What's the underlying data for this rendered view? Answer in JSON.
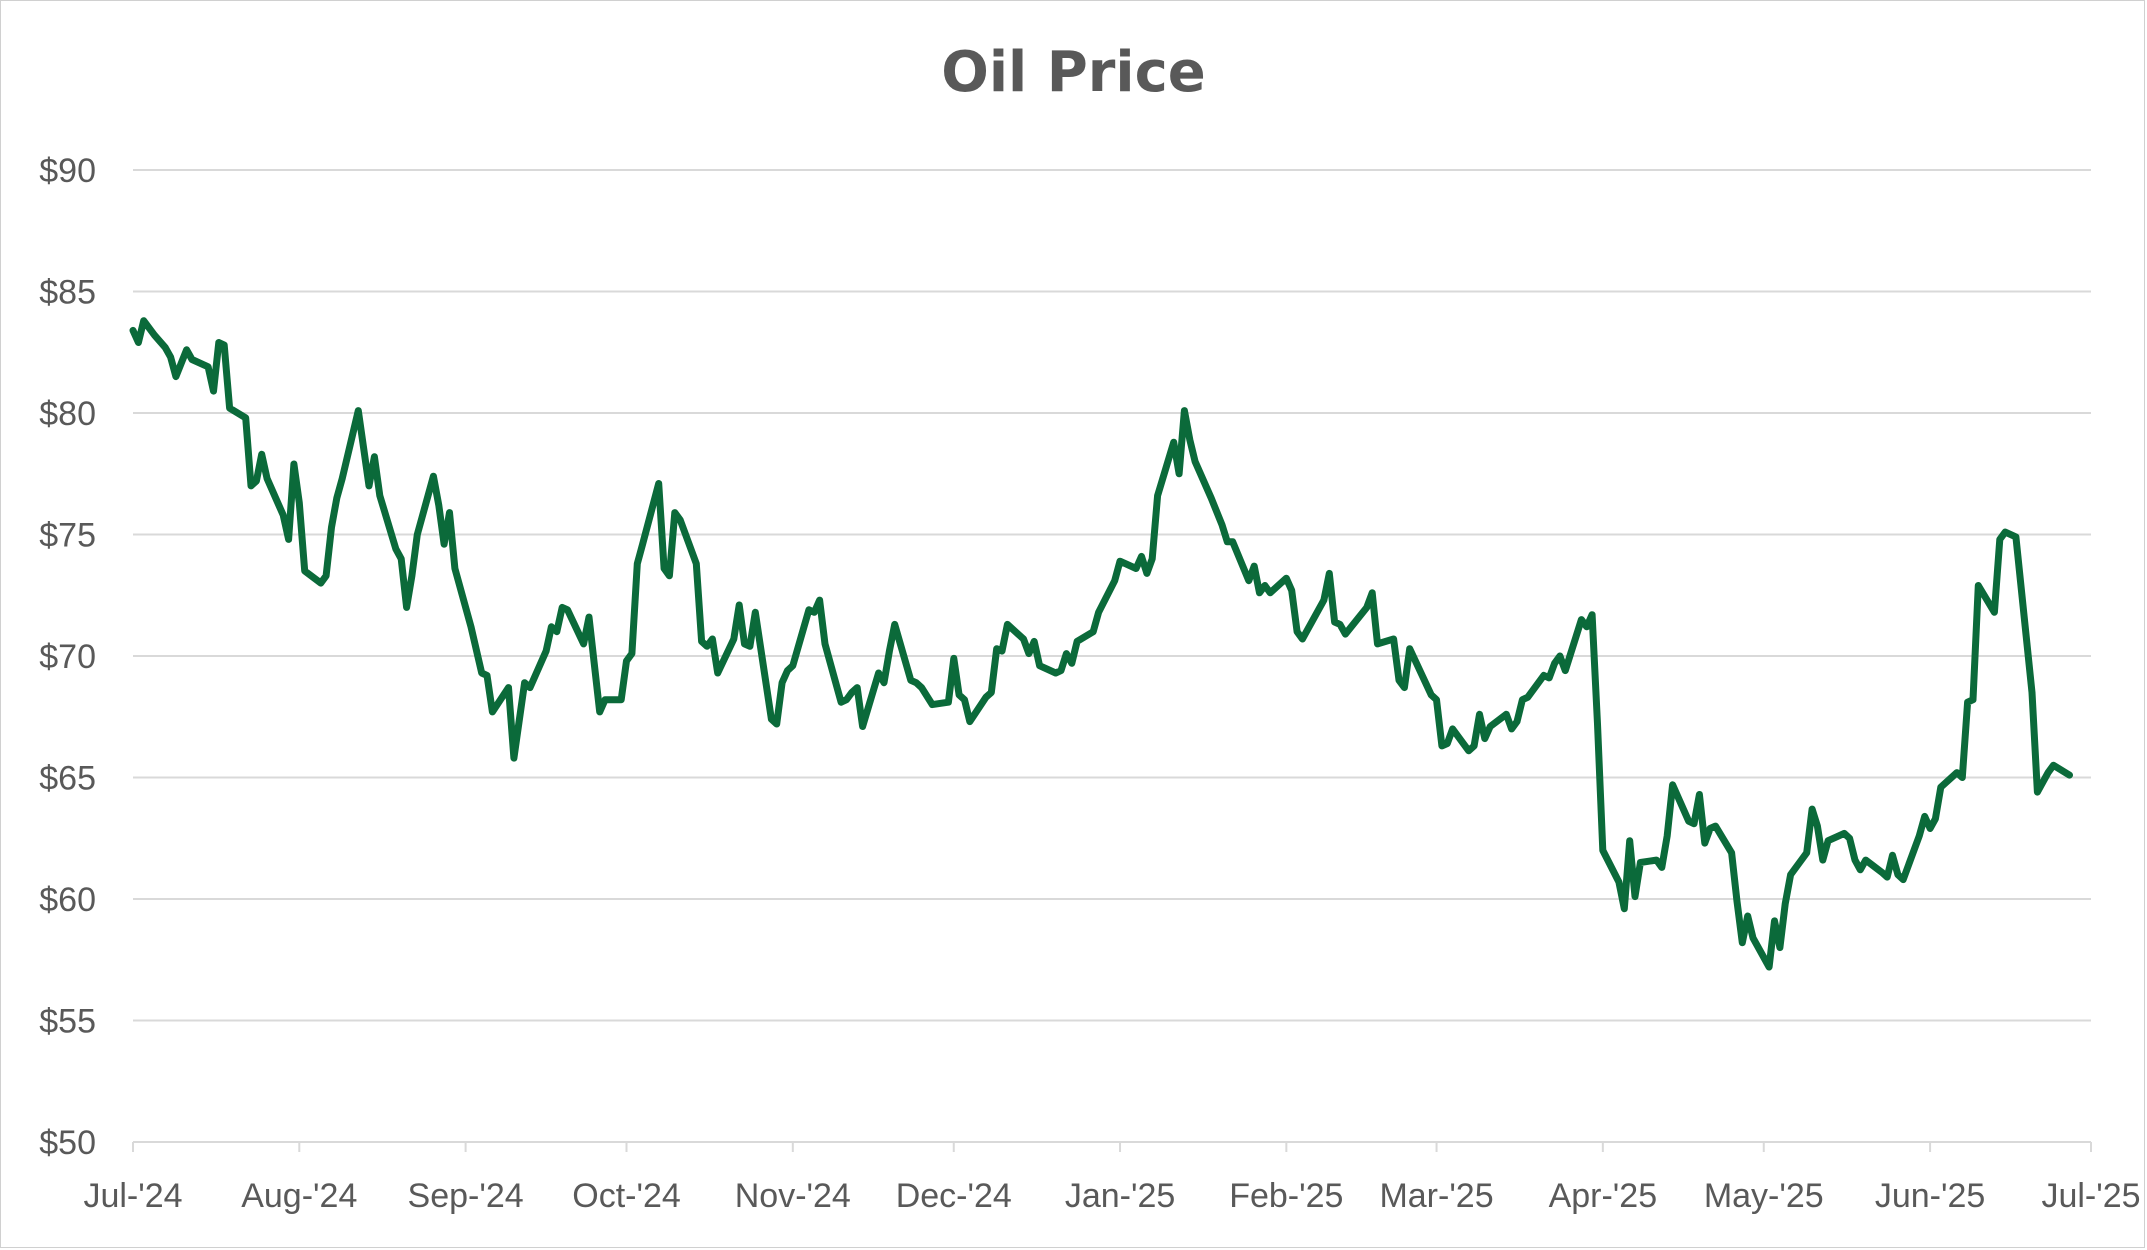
{
  "chart_data": {
    "type": "line",
    "title": "Oil Price",
    "xlabel": "",
    "ylabel": "",
    "ylim": [
      50,
      90
    ],
    "y_ticks": [
      50,
      55,
      60,
      65,
      70,
      75,
      80,
      85,
      90
    ],
    "y_tick_labels": [
      "$50",
      "$55",
      "$60",
      "$65",
      "$70",
      "$75",
      "$80",
      "$85",
      "$90"
    ],
    "x_ticks": [
      {
        "label": "Jul-'24",
        "day": 0
      },
      {
        "label": "Aug-'24",
        "day": 31
      },
      {
        "label": "Sep-'24",
        "day": 62
      },
      {
        "label": "Oct-'24",
        "day": 92
      },
      {
        "label": "Nov-'24",
        "day": 123
      },
      {
        "label": "Dec-'24",
        "day": 153
      },
      {
        "label": "Jan-'25",
        "day": 184
      },
      {
        "label": "Feb-'25",
        "day": 215
      },
      {
        "label": "Mar-'25",
        "day": 243
      },
      {
        "label": "Apr-'25",
        "day": 274
      },
      {
        "label": "May-'25",
        "day": 304
      },
      {
        "label": "Jun-'25",
        "day": 335
      },
      {
        "label": "Jul-'25",
        "day": 365
      }
    ],
    "xlim": [
      0,
      365
    ],
    "grid": true,
    "legend": "none",
    "series": [
      {
        "name": "Oil Price",
        "color": "#0b6a3a",
        "points": [
          [
            0,
            83.4
          ],
          [
            1,
            82.9
          ],
          [
            2,
            83.8
          ],
          [
            4,
            83.2
          ],
          [
            6,
            82.7
          ],
          [
            7,
            82.3
          ],
          [
            8,
            81.5
          ],
          [
            10,
            82.6
          ],
          [
            11,
            82.2
          ],
          [
            14,
            81.9
          ],
          [
            15,
            80.9
          ],
          [
            16,
            82.9
          ],
          [
            17,
            82.8
          ],
          [
            18,
            80.2
          ],
          [
            21,
            79.8
          ],
          [
            22,
            77.0
          ],
          [
            23,
            77.2
          ],
          [
            24,
            78.3
          ],
          [
            25,
            77.3
          ],
          [
            28,
            75.8
          ],
          [
            29,
            74.8
          ],
          [
            30,
            77.9
          ],
          [
            31,
            76.3
          ],
          [
            32,
            73.5
          ],
          [
            35,
            73.0
          ],
          [
            36,
            73.3
          ],
          [
            37,
            75.3
          ],
          [
            38,
            76.5
          ],
          [
            39,
            77.3
          ],
          [
            42,
            80.1
          ],
          [
            44,
            77.0
          ],
          [
            45,
            78.2
          ],
          [
            46,
            76.6
          ],
          [
            49,
            74.4
          ],
          [
            50,
            74.0
          ],
          [
            51,
            72.0
          ],
          [
            52,
            73.3
          ],
          [
            53,
            75.0
          ],
          [
            56,
            77.4
          ],
          [
            57,
            76.2
          ],
          [
            58,
            74.6
          ],
          [
            59,
            75.9
          ],
          [
            60,
            73.6
          ],
          [
            63,
            71.2
          ],
          [
            65,
            69.3
          ],
          [
            66,
            69.2
          ],
          [
            67,
            67.7
          ],
          [
            70,
            68.7
          ],
          [
            71,
            65.8
          ],
          [
            73,
            68.9
          ],
          [
            74,
            68.7
          ],
          [
            77,
            70.2
          ],
          [
            78,
            71.2
          ],
          [
            79,
            71.0
          ],
          [
            80,
            72.0
          ],
          [
            81,
            71.9
          ],
          [
            84,
            70.5
          ],
          [
            85,
            71.6
          ],
          [
            87,
            67.7
          ],
          [
            88,
            68.2
          ],
          [
            91,
            68.2
          ],
          [
            92,
            69.8
          ],
          [
            93,
            70.1
          ],
          [
            94,
            73.8
          ],
          [
            95,
            74.6
          ],
          [
            98,
            77.1
          ],
          [
            99,
            73.6
          ],
          [
            100,
            73.3
          ],
          [
            101,
            75.9
          ],
          [
            102,
            75.6
          ],
          [
            105,
            73.8
          ],
          [
            106,
            70.6
          ],
          [
            107,
            70.4
          ],
          [
            108,
            70.7
          ],
          [
            109,
            69.3
          ],
          [
            112,
            70.7
          ],
          [
            113,
            72.1
          ],
          [
            114,
            70.5
          ],
          [
            115,
            70.4
          ],
          [
            116,
            71.8
          ],
          [
            119,
            67.4
          ],
          [
            120,
            67.2
          ],
          [
            121,
            68.9
          ],
          [
            122,
            69.4
          ],
          [
            123,
            69.6
          ],
          [
            126,
            71.9
          ],
          [
            127,
            71.8
          ],
          [
            128,
            72.3
          ],
          [
            129,
            70.5
          ],
          [
            132,
            68.1
          ],
          [
            133,
            68.2
          ],
          [
            134,
            68.5
          ],
          [
            135,
            68.7
          ],
          [
            136,
            67.1
          ],
          [
            139,
            69.3
          ],
          [
            140,
            68.9
          ],
          [
            141,
            70.2
          ],
          [
            142,
            71.3
          ],
          [
            145,
            69.0
          ],
          [
            146,
            68.9
          ],
          [
            147,
            68.7
          ],
          [
            149,
            68.0
          ],
          [
            152,
            68.1
          ],
          [
            153,
            69.9
          ],
          [
            154,
            68.4
          ],
          [
            155,
            68.2
          ],
          [
            156,
            67.3
          ],
          [
            159,
            68.3
          ],
          [
            160,
            68.5
          ],
          [
            161,
            70.3
          ],
          [
            162,
            70.2
          ],
          [
            163,
            71.3
          ],
          [
            166,
            70.7
          ],
          [
            167,
            70.1
          ],
          [
            168,
            70.6
          ],
          [
            169,
            69.6
          ],
          [
            172,
            69.3
          ],
          [
            173,
            69.4
          ],
          [
            174,
            70.1
          ],
          [
            175,
            69.7
          ],
          [
            176,
            70.6
          ],
          [
            179,
            71.0
          ],
          [
            180,
            71.8
          ],
          [
            183,
            73.1
          ],
          [
            184,
            73.9
          ],
          [
            187,
            73.6
          ],
          [
            188,
            74.1
          ],
          [
            189,
            73.4
          ],
          [
            190,
            74.0
          ],
          [
            191,
            76.6
          ],
          [
            194,
            78.8
          ],
          [
            195,
            77.5
          ],
          [
            196,
            80.1
          ],
          [
            197,
            78.9
          ],
          [
            198,
            78.0
          ],
          [
            201,
            76.5
          ],
          [
            203,
            75.4
          ],
          [
            204,
            74.7
          ],
          [
            205,
            74.7
          ],
          [
            208,
            73.1
          ],
          [
            209,
            73.7
          ],
          [
            210,
            72.6
          ],
          [
            211,
            72.9
          ],
          [
            212,
            72.6
          ],
          [
            215,
            73.2
          ],
          [
            216,
            72.7
          ],
          [
            217,
            71.0
          ],
          [
            218,
            70.7
          ],
          [
            222,
            72.3
          ],
          [
            223,
            73.4
          ],
          [
            224,
            71.4
          ],
          [
            225,
            71.3
          ],
          [
            226,
            70.9
          ],
          [
            230,
            72.0
          ],
          [
            231,
            72.6
          ],
          [
            232,
            70.5
          ],
          [
            235,
            70.7
          ],
          [
            236,
            69.0
          ],
          [
            237,
            68.7
          ],
          [
            238,
            70.3
          ],
          [
            242,
            68.4
          ],
          [
            243,
            68.2
          ],
          [
            244,
            66.3
          ],
          [
            245,
            66.4
          ],
          [
            246,
            67.0
          ],
          [
            249,
            66.1
          ],
          [
            250,
            66.3
          ],
          [
            251,
            67.6
          ],
          [
            252,
            66.6
          ],
          [
            253,
            67.1
          ],
          [
            256,
            67.6
          ],
          [
            257,
            67.0
          ],
          [
            258,
            67.3
          ],
          [
            259,
            68.2
          ],
          [
            260,
            68.3
          ],
          [
            263,
            69.2
          ],
          [
            264,
            69.1
          ],
          [
            265,
            69.7
          ],
          [
            266,
            70.0
          ],
          [
            267,
            69.4
          ],
          [
            270,
            71.5
          ],
          [
            271,
            71.2
          ],
          [
            272,
            71.7
          ],
          [
            273,
            67.2
          ],
          [
            274,
            62.0
          ],
          [
            277,
            60.7
          ],
          [
            278,
            59.6
          ],
          [
            279,
            62.4
          ],
          [
            280,
            60.1
          ],
          [
            281,
            61.5
          ],
          [
            284,
            61.6
          ],
          [
            285,
            61.3
          ],
          [
            286,
            62.6
          ],
          [
            287,
            64.7
          ],
          [
            290,
            63.2
          ],
          [
            291,
            63.1
          ],
          [
            292,
            64.3
          ],
          [
            293,
            62.3
          ],
          [
            294,
            62.9
          ],
          [
            295,
            63.0
          ],
          [
            298,
            61.9
          ],
          [
            299,
            59.9
          ],
          [
            300,
            58.2
          ],
          [
            301,
            59.3
          ],
          [
            302,
            58.4
          ],
          [
            305,
            57.2
          ],
          [
            306,
            59.1
          ],
          [
            307,
            58.0
          ],
          [
            308,
            59.8
          ],
          [
            309,
            61.0
          ],
          [
            312,
            61.9
          ],
          [
            313,
            63.7
          ],
          [
            314,
            63.0
          ],
          [
            315,
            61.6
          ],
          [
            316,
            62.4
          ],
          [
            319,
            62.7
          ],
          [
            320,
            62.5
          ],
          [
            321,
            61.6
          ],
          [
            322,
            61.2
          ],
          [
            323,
            61.6
          ],
          [
            326,
            61.1
          ],
          [
            327,
            60.9
          ],
          [
            328,
            61.8
          ],
          [
            329,
            61.0
          ],
          [
            330,
            60.8
          ],
          [
            333,
            62.6
          ],
          [
            334,
            63.4
          ],
          [
            335,
            62.9
          ],
          [
            336,
            63.3
          ],
          [
            337,
            64.6
          ],
          [
            340,
            65.2
          ],
          [
            341,
            65.0
          ],
          [
            342,
            68.1
          ],
          [
            343,
            68.2
          ],
          [
            344,
            72.9
          ],
          [
            347,
            71.8
          ],
          [
            348,
            74.8
          ],
          [
            349,
            75.1
          ],
          [
            351,
            74.9
          ],
          [
            354,
            68.5
          ],
          [
            355,
            64.4
          ],
          [
            357,
            65.2
          ],
          [
            358,
            65.5
          ],
          [
            361,
            65.1
          ]
        ]
      }
    ]
  }
}
